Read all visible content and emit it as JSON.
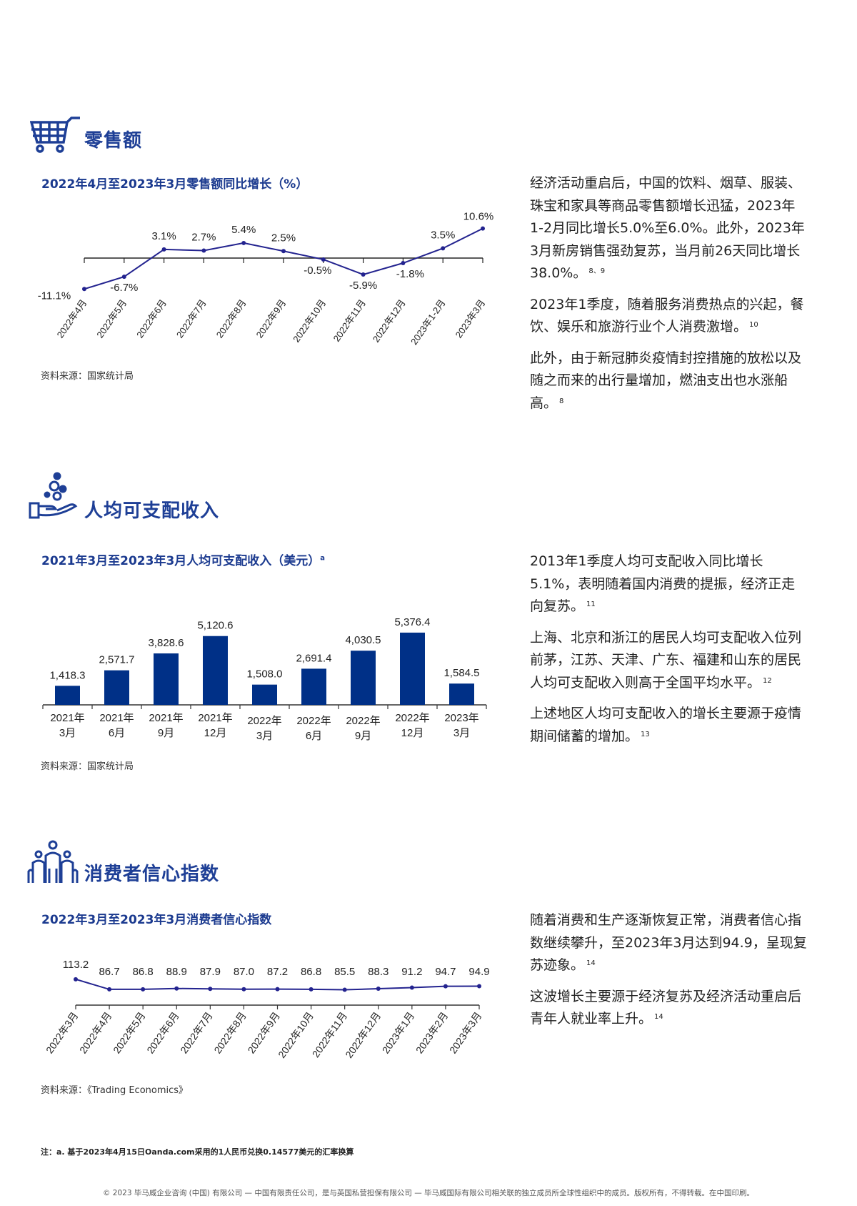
{
  "colors": {
    "heading": "#1e3f96",
    "line": "#23238f",
    "bar": "#003087",
    "axis": "#333333"
  },
  "sections": [
    {
      "icon": "shopping-cart-icon",
      "title": "零售额",
      "chart_title": "2022年4月至2023年3月零售额同比增长（%）",
      "source": "资料来源：国家统计局",
      "paragraphs": [
        {
          "text": "经济活动重启后，中国的饮料、烟草、服装、珠宝和家具等商品零售额增长迅猛，2023年1-2月同比增长5.0%至6.0%。此外，2023年3月新房销售强劲复苏，当月前26天同比增长38.0%。",
          "ref": "8、9"
        },
        {
          "text": "2023年1季度，随着服务消费热点的兴起，餐饮、娱乐和旅游行业个人消费激增。",
          "ref": "10"
        },
        {
          "text": "此外，由于新冠肺炎疫情封控措施的放松以及随之而来的出行量增加，燃油支出也水涨船高。",
          "ref": "8"
        }
      ]
    },
    {
      "icon": "hand-coins-icon",
      "title": "人均可支配收入",
      "chart_title": "2021年3月至2023年3月人均可支配收入（美元）",
      "chart_title_note": "a",
      "source": "资料来源：国家统计局",
      "paragraphs": [
        {
          "text": "2013年1季度人均可支配收入同比增长5.1%，表明随着国内消费的提振，经济正走向复苏。",
          "ref": "11"
        },
        {
          "text": "上海、北京和浙江的居民人均可支配收入位列前茅，江苏、天津、广东、福建和山东的居民人均可支配收入则高于全国平均水平。",
          "ref": "12"
        },
        {
          "text": "上述地区人均可支配收入的增长主要源于疫情期间储蓄的增加。",
          "ref": "13"
        }
      ]
    },
    {
      "icon": "family-people-icon",
      "title": "消费者信心指数",
      "chart_title": "2022年3月至2023年3月消费者信心指数",
      "source": "资料来源：《Trading Economics》",
      "paragraphs": [
        {
          "text": "随着消费和生产逐渐恢复正常，消费者信心指数继续攀升，至2023年3月达到94.9，呈现复苏迹象。",
          "ref": "14"
        },
        {
          "text": "这波增长主要源于经济复苏及经济活动重启后青年人就业率上升。",
          "ref": "14"
        }
      ]
    }
  ],
  "chart_data": [
    {
      "type": "line",
      "categories": [
        "2022年4月",
        "2022年5月",
        "2022年6月",
        "2022年7月",
        "2022年8月",
        "2022年9月",
        "2022年10月",
        "2022年11月",
        "2022年12月",
        "2023年1-2月",
        "2023年3月"
      ],
      "values": [
        -11.1,
        -6.7,
        3.1,
        2.7,
        5.4,
        2.5,
        -0.5,
        -5.9,
        -1.8,
        3.5,
        10.6
      ],
      "data_labels": [
        "-11.1%",
        "-6.7%",
        "3.1%",
        "2.7%",
        "5.4%",
        "2.5%",
        "-0.5%",
        "-5.9%",
        "-1.8%",
        "3.5%",
        "10.6%"
      ],
      "ylim": [
        -12,
        12
      ],
      "grid": false
    },
    {
      "type": "bar",
      "categories": [
        [
          "2021年",
          "3月"
        ],
        [
          "2021年",
          "6月"
        ],
        [
          "2021年",
          "9月"
        ],
        [
          "2021年",
          "12月"
        ],
        [
          "2022年",
          "3月"
        ],
        [
          "2022年",
          "6月"
        ],
        [
          "2022年",
          "9月"
        ],
        [
          "2022年",
          "12月"
        ],
        [
          "2023年",
          "3月"
        ]
      ],
      "values": [
        1418.3,
        2571.7,
        3828.6,
        5120.6,
        1508.0,
        2691.4,
        4030.5,
        5376.4,
        1584.5
      ],
      "data_labels": [
        "1,418.3",
        "2,571.7",
        "3,828.6",
        "5,120.6",
        "1,508.0",
        "2,691.4",
        "4,030.5",
        "5,376.4",
        "1,584.5"
      ],
      "ylim": [
        0,
        5600
      ],
      "grid": false
    },
    {
      "type": "line",
      "categories": [
        "2022年3月",
        "2022年4月",
        "2022年5月",
        "2022年6月",
        "2022年7月",
        "2022年8月",
        "2022年9月",
        "2022年10月",
        "2022年11月",
        "2022年12月",
        "2023年1月",
        "2023年2月",
        "2023年3月"
      ],
      "values": [
        113.2,
        86.7,
        86.8,
        88.9,
        87.9,
        87.0,
        87.2,
        86.8,
        85.5,
        88.3,
        91.2,
        94.7,
        94.9
      ],
      "data_labels": [
        "113.2",
        "86.7",
        "86.8",
        "88.9",
        "87.9",
        "87.0",
        "87.2",
        "86.8",
        "85.5",
        "88.3",
        "91.2",
        "94.7",
        "94.9"
      ],
      "ylim": [
        45,
        120
      ],
      "grid": false
    }
  ],
  "footer": {
    "note": "注：a. 基于2023年4月15日Oanda.com采用的1人民币兑换0.14577美元的汇率换算",
    "copyright": "© 2023 毕马威企业咨询 (中国) 有限公司 — 中国有限责任公司，是与英国私营担保有限公司 — 毕马威国际有限公司相关联的独立成员所全球性组织中的成员。版权所有，不得转载。在中国印刷。"
  }
}
